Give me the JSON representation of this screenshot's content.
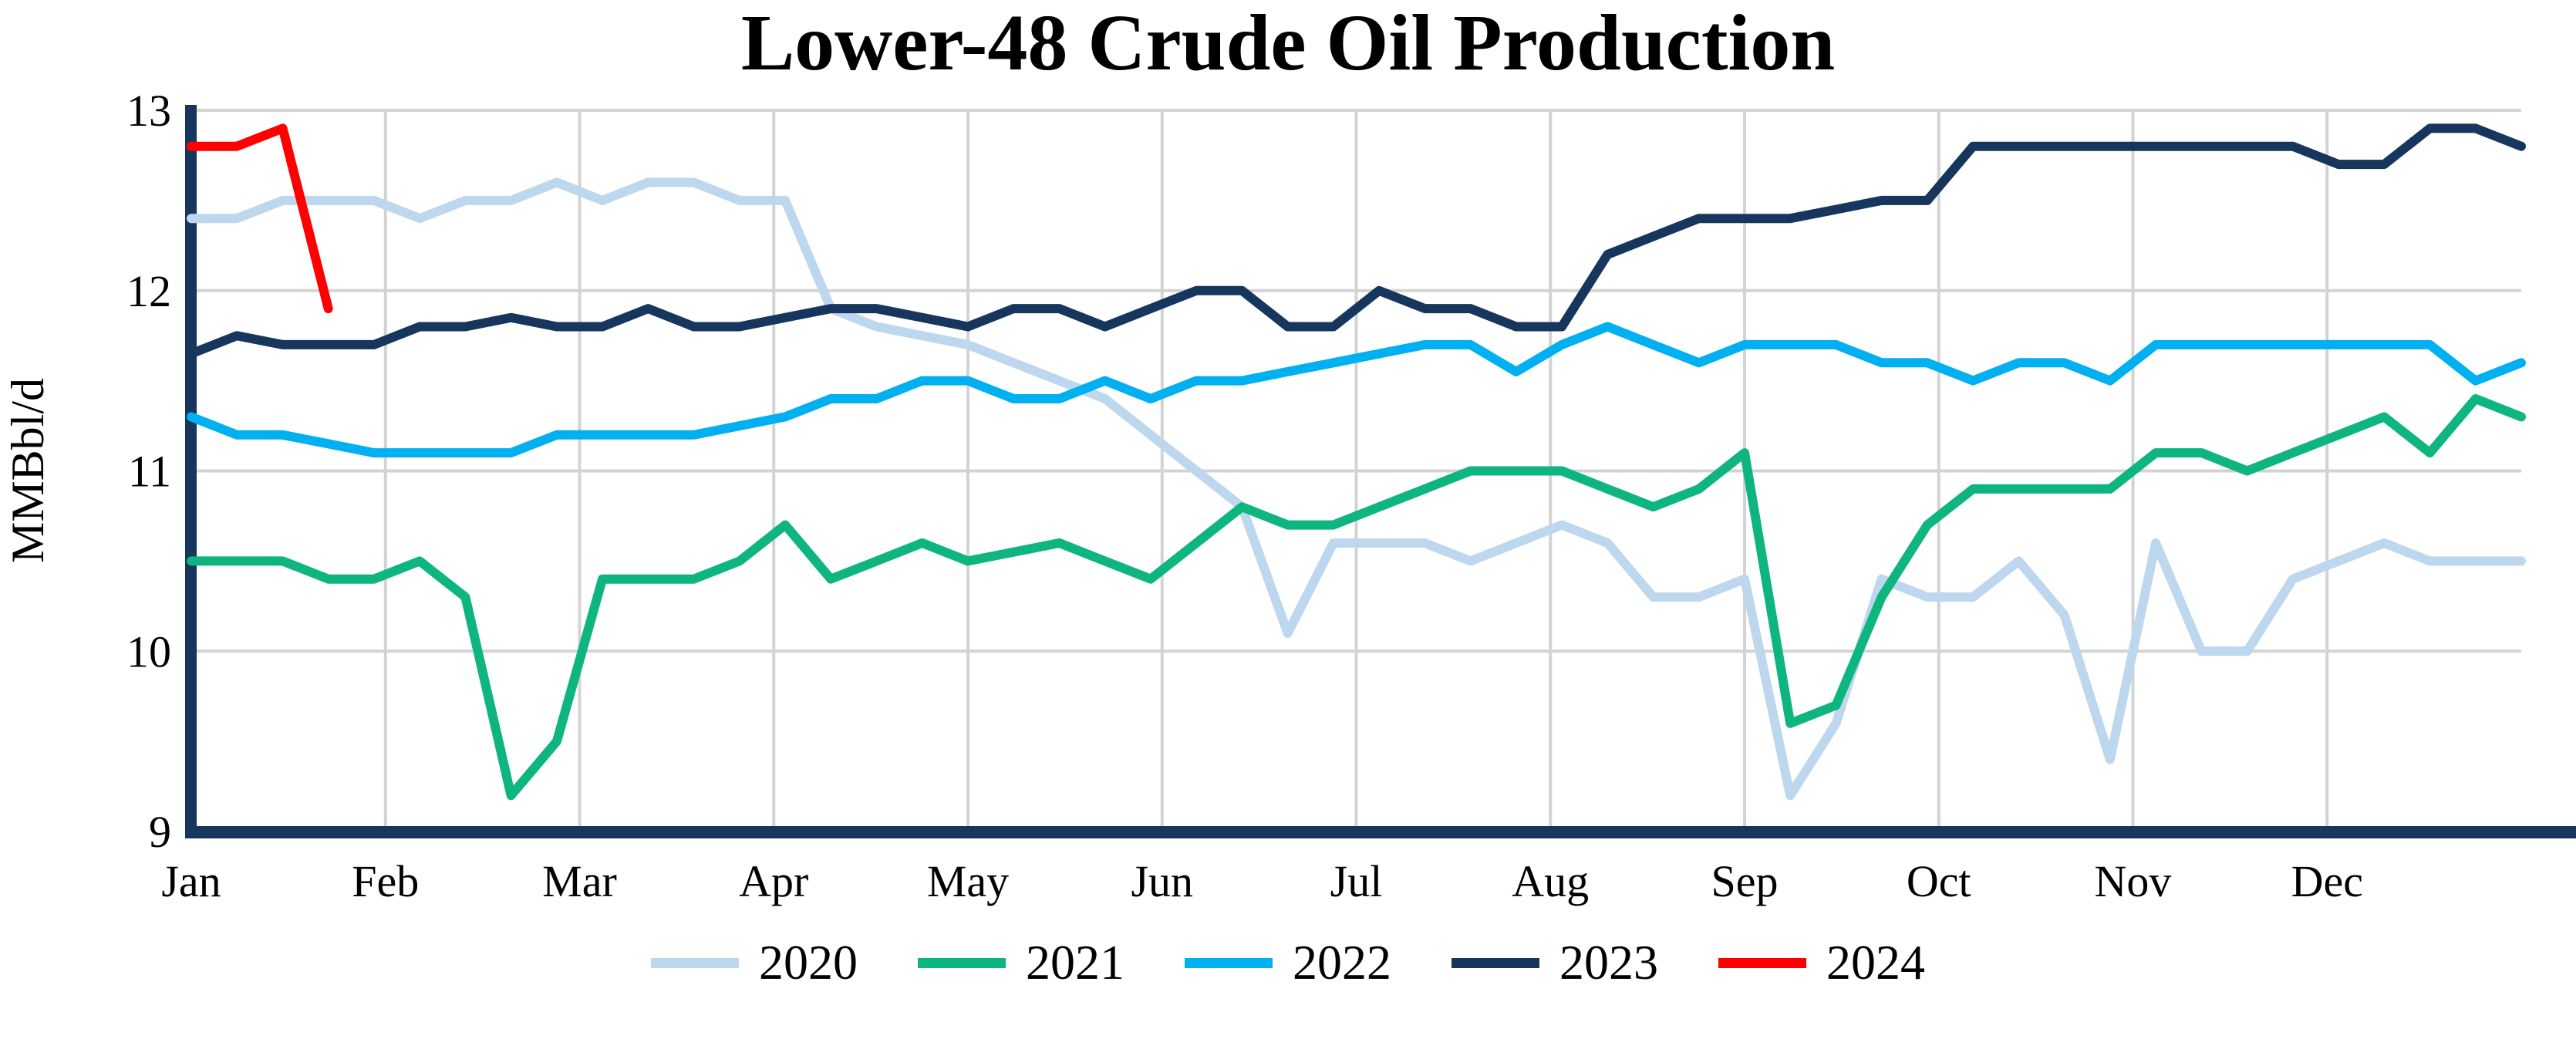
{
  "title": "Lower-48 Crude Oil Production",
  "chart_data": {
    "type": "line",
    "title": "Lower-48 Crude Oil Production",
    "xlabel": "",
    "ylabel": "MMBbl/d",
    "ylim": [
      9,
      13
    ],
    "yticks": [
      9,
      10,
      11,
      12,
      13
    ],
    "xticklabels": [
      "Jan",
      "Feb",
      "Mar",
      "Apr",
      "May",
      "Jun",
      "Jul",
      "Aug",
      "Sep",
      "Oct",
      "Nov",
      "Dec"
    ],
    "grid": true,
    "grid_color": "#d3d3d3",
    "axis_color": "#17365d",
    "legend_position": "bottom",
    "x_unit": "week",
    "series": [
      {
        "name": "2020",
        "color": "#bdd7ee",
        "values": [
          12.4,
          12.4,
          12.5,
          12.5,
          12.5,
          12.4,
          12.5,
          12.5,
          12.6,
          12.5,
          12.6,
          12.6,
          12.5,
          12.5,
          11.9,
          11.8,
          11.75,
          11.7,
          11.6,
          11.5,
          11.4,
          11.2,
          11.0,
          10.8,
          10.1,
          10.6,
          10.6,
          10.6,
          10.5,
          10.6,
          10.7,
          10.6,
          10.3,
          10.3,
          10.4,
          9.2,
          9.6,
          10.4,
          10.3,
          10.3,
          10.5,
          10.2,
          9.4,
          10.6,
          10.0,
          10.0,
          10.4,
          10.5,
          10.6,
          10.5,
          10.5,
          10.5
        ]
      },
      {
        "name": "2021",
        "color": "#0eb57e",
        "values": [
          10.5,
          10.5,
          10.5,
          10.4,
          10.4,
          10.5,
          10.3,
          9.2,
          9.5,
          10.4,
          10.4,
          10.4,
          10.5,
          10.7,
          10.4,
          10.5,
          10.6,
          10.5,
          10.55,
          10.6,
          10.5,
          10.4,
          10.6,
          10.8,
          10.7,
          10.7,
          10.8,
          10.9,
          11.0,
          11.0,
          11.0,
          10.9,
          10.8,
          10.9,
          11.1,
          9.6,
          9.7,
          10.3,
          10.7,
          10.9,
          10.9,
          10.9,
          10.9,
          11.1,
          11.1,
          11.0,
          11.1,
          11.2,
          11.3,
          11.1,
          11.4,
          11.3
        ]
      },
      {
        "name": "2022",
        "color": "#00b0f0",
        "values": [
          11.3,
          11.2,
          11.2,
          11.15,
          11.1,
          11.1,
          11.1,
          11.1,
          11.2,
          11.2,
          11.2,
          11.2,
          11.25,
          11.3,
          11.4,
          11.4,
          11.5,
          11.5,
          11.4,
          11.4,
          11.5,
          11.4,
          11.5,
          11.5,
          11.55,
          11.6,
          11.65,
          11.7,
          11.7,
          11.55,
          11.7,
          11.8,
          11.7,
          11.6,
          11.7,
          11.7,
          11.7,
          11.6,
          11.6,
          11.5,
          11.6,
          11.6,
          11.5,
          11.7,
          11.7,
          11.7,
          11.7,
          11.7,
          11.7,
          11.7,
          11.5,
          11.6
        ]
      },
      {
        "name": "2023",
        "color": "#17365d",
        "values": [
          11.65,
          11.75,
          11.7,
          11.7,
          11.7,
          11.8,
          11.8,
          11.85,
          11.8,
          11.8,
          11.9,
          11.8,
          11.8,
          11.85,
          11.9,
          11.9,
          11.85,
          11.8,
          11.9,
          11.9,
          11.8,
          11.9,
          12.0,
          12.0,
          11.8,
          11.8,
          12.0,
          11.9,
          11.9,
          11.8,
          11.8,
          12.2,
          12.3,
          12.4,
          12.4,
          12.4,
          12.45,
          12.5,
          12.5,
          12.8,
          12.8,
          12.8,
          12.8,
          12.8,
          12.8,
          12.8,
          12.8,
          12.7,
          12.7,
          12.9,
          12.9,
          12.8
        ]
      },
      {
        "name": "2024",
        "color": "#ff0000",
        "values": [
          12.8,
          12.8,
          12.9,
          11.9
        ]
      }
    ]
  }
}
